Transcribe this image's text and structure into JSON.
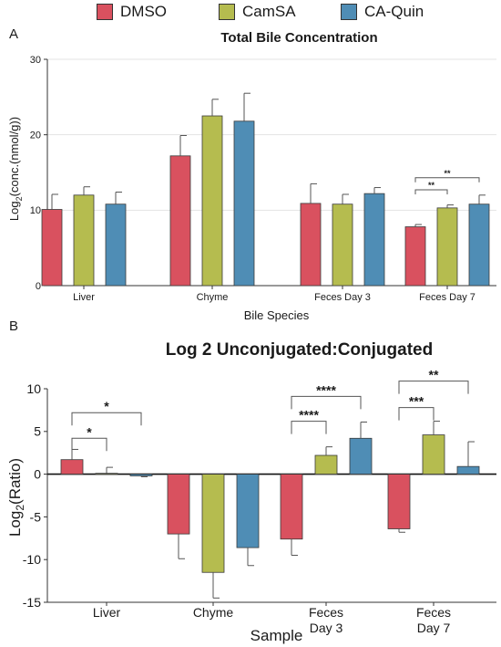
{
  "legend": [
    {
      "name": "DMSO",
      "color": "#d9515f"
    },
    {
      "name": "CamSA",
      "color": "#b5bc4f"
    },
    {
      "name": "CA-Quin",
      "color": "#4f8db5"
    }
  ],
  "chart_data": [
    {
      "panel": "A",
      "type": "bar",
      "title": "Total Bile Concentration",
      "xlabel": "Bile Species",
      "ylabel": "Log2(conc.(nmol/g))",
      "ylim": [
        0,
        30
      ],
      "yticks": [
        0,
        10,
        20,
        30
      ],
      "grid": true,
      "categories": [
        "Liver",
        "Chyme",
        "Feces Day 3",
        "Feces Day 7"
      ],
      "series": [
        {
          "name": "DMSO",
          "values": [
            10.1,
            17.2,
            10.9,
            7.8
          ],
          "errors": [
            2.0,
            2.7,
            2.6,
            0.3
          ]
        },
        {
          "name": "CamSA",
          "values": [
            12.0,
            22.5,
            10.8,
            10.3
          ],
          "errors": [
            1.1,
            2.2,
            1.3,
            0.4
          ]
        },
        {
          "name": "CA-Quin",
          "values": [
            10.8,
            21.8,
            12.2,
            10.8
          ],
          "errors": [
            1.6,
            3.7,
            0.8,
            1.2
          ]
        }
      ],
      "significance": [
        {
          "category": 3,
          "from": 0,
          "to": 1,
          "label": "**",
          "y": 12.7
        },
        {
          "category": 3,
          "from": 0,
          "to": 2,
          "label": "**",
          "y": 14.3
        }
      ]
    },
    {
      "panel": "B",
      "type": "bar",
      "title": "Log 2 Unconjugated:Conjugated",
      "xlabel": "Sample",
      "ylabel": "Log2(Ratio)",
      "ylim": [
        -15,
        10
      ],
      "yticks": [
        -15,
        -10,
        -5,
        0,
        5,
        10
      ],
      "grid": false,
      "categories": [
        [
          "Liver"
        ],
        [
          "Chyme"
        ],
        [
          "Feces",
          "Day 3"
        ],
        [
          "Feces",
          "Day 7"
        ]
      ],
      "series": [
        {
          "name": "DMSO",
          "values": [
            1.7,
            -7.0,
            -7.6,
            -6.4
          ],
          "errors": [
            1.2,
            2.9,
            1.9,
            0.4
          ]
        },
        {
          "name": "CamSA",
          "values": [
            0.1,
            -11.5,
            2.2,
            4.6
          ],
          "errors": [
            0.7,
            3.0,
            1.0,
            1.6
          ]
        },
        {
          "name": "CA-Quin",
          "values": [
            -0.2,
            -8.6,
            4.2,
            0.9
          ],
          "errors": [
            0.1,
            2.1,
            1.9,
            2.9
          ]
        }
      ],
      "significance": [
        {
          "category": 0,
          "from": 0,
          "to": 1,
          "label": "*",
          "y": 4.2
        },
        {
          "category": 0,
          "from": 0,
          "to": 2,
          "label": "*",
          "y": 7.2
        },
        {
          "category": 2,
          "from": 1,
          "to": 0,
          "label": "****",
          "y": 6.2
        },
        {
          "category": 2,
          "from": 2,
          "to": 0,
          "label": "****",
          "y": 9.1
        },
        {
          "category": 3,
          "from": 1,
          "to": 0,
          "label": "***",
          "y": 7.8
        },
        {
          "category": 3,
          "from": 2,
          "to": 0,
          "label": "**",
          "y": 10.9
        }
      ]
    }
  ],
  "panel_labels": [
    "A",
    "B"
  ]
}
